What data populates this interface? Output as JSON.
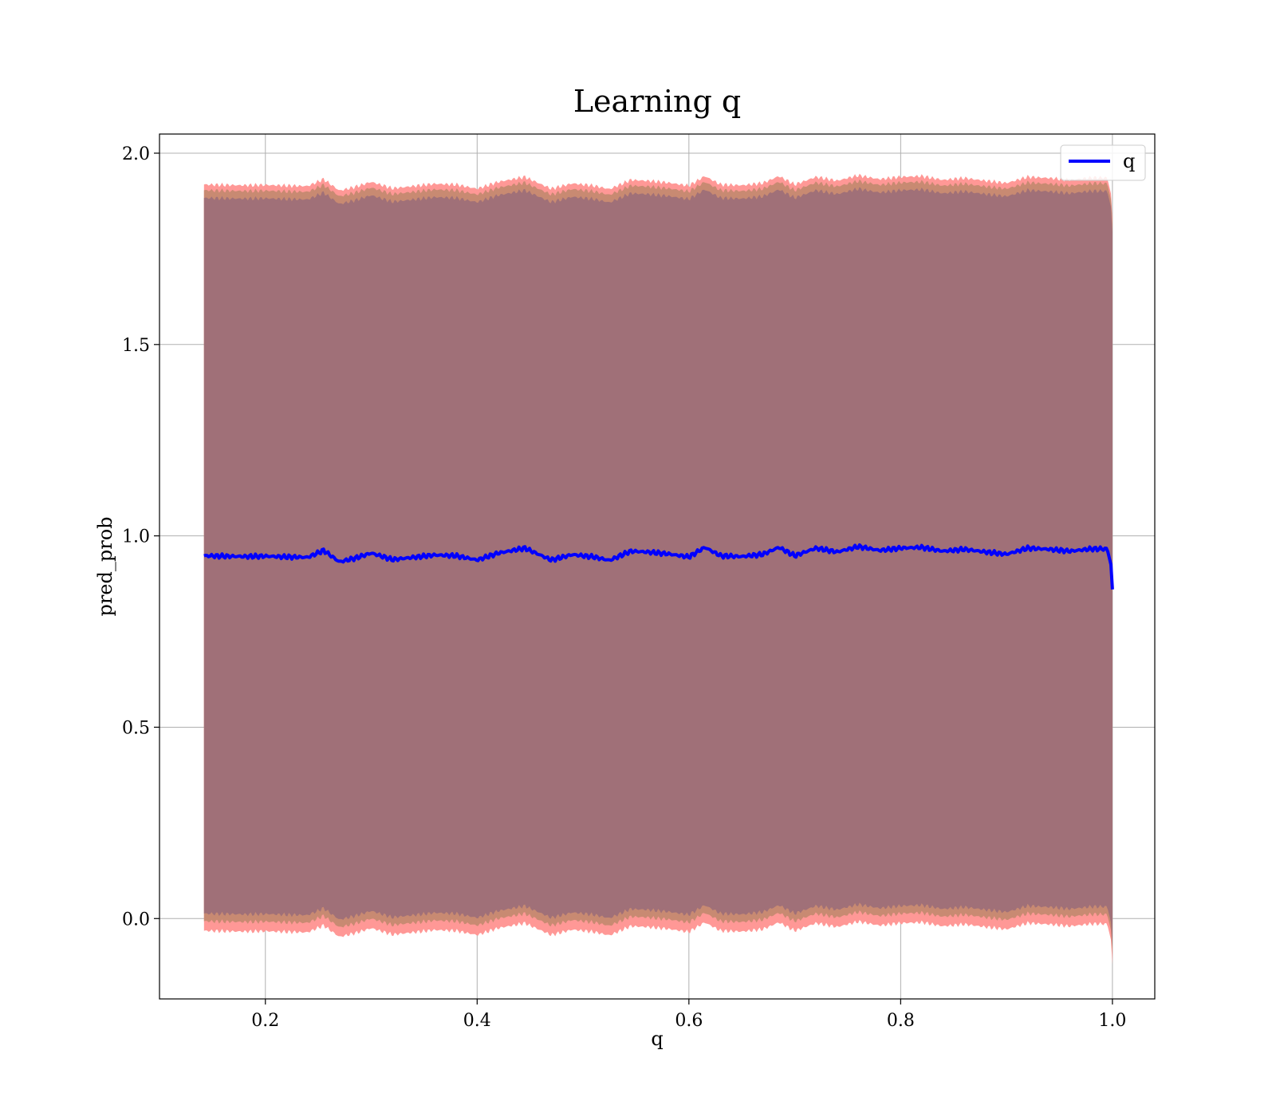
{
  "chart_data": {
    "type": "line",
    "title": "Learning q",
    "xlabel": "q",
    "ylabel": "pred_prob",
    "xlim": [
      0.1,
      1.04
    ],
    "ylim": [
      -0.21,
      2.05
    ],
    "xticks": [
      0.2,
      0.4,
      0.6,
      0.8,
      1.0
    ],
    "xtick_labels": [
      "0.2",
      "0.4",
      "0.6",
      "0.8",
      "1.0"
    ],
    "yticks": [
      0.0,
      0.5,
      1.0,
      1.5,
      2.0
    ],
    "ytick_labels": [
      "0.0",
      "0.5",
      "1.0",
      "1.5",
      "2.0"
    ],
    "grid": true,
    "legend": {
      "placement": "top-right",
      "entries": [
        {
          "label": "q",
          "color": "#0000ff"
        }
      ]
    },
    "series": [
      {
        "name": "q",
        "color": "#0000ff",
        "x": [
          0.142,
          0.16,
          0.18,
          0.2,
          0.22,
          0.24,
          0.255,
          0.27,
          0.285,
          0.3,
          0.32,
          0.34,
          0.36,
          0.38,
          0.4,
          0.42,
          0.445,
          0.47,
          0.49,
          0.51,
          0.525,
          0.545,
          0.56,
          0.58,
          0.6,
          0.615,
          0.63,
          0.65,
          0.67,
          0.685,
          0.7,
          0.72,
          0.74,
          0.76,
          0.78,
          0.8,
          0.82,
          0.84,
          0.86,
          0.88,
          0.9,
          0.92,
          0.94,
          0.96,
          0.98,
          0.995,
          0.999,
          1.0
        ],
        "values": [
          0.948,
          0.947,
          0.946,
          0.947,
          0.945,
          0.944,
          0.962,
          0.932,
          0.942,
          0.955,
          0.938,
          0.944,
          0.95,
          0.948,
          0.937,
          0.955,
          0.968,
          0.937,
          0.951,
          0.945,
          0.936,
          0.96,
          0.958,
          0.953,
          0.945,
          0.97,
          0.948,
          0.946,
          0.952,
          0.97,
          0.948,
          0.968,
          0.958,
          0.972,
          0.962,
          0.968,
          0.97,
          0.96,
          0.965,
          0.958,
          0.952,
          0.968,
          0.965,
          0.96,
          0.966,
          0.966,
          0.92,
          0.86
        ]
      }
    ],
    "bands": [
      {
        "name": "outer band",
        "color": "#ff9896",
        "lower_offset": -0.98,
        "upper_offset": 0.97
      },
      {
        "name": "middle band",
        "color": "#c88a72",
        "lower_offset": -0.955,
        "upper_offset": 0.955
      },
      {
        "name": "inner band",
        "color": "#a07078",
        "lower_offset": -0.935,
        "upper_offset": 0.935
      }
    ]
  }
}
